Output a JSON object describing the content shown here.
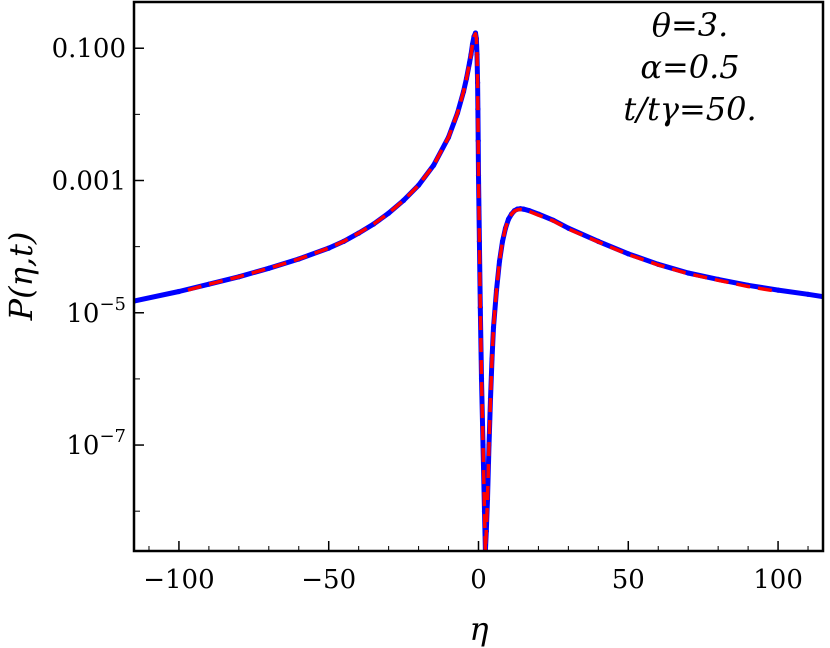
{
  "chart_data": {
    "type": "line",
    "title": "",
    "xlabel": "η",
    "ylabel": "P(η,t)",
    "xlim": [
      -115,
      115
    ],
    "ylim": [
      2.5e-09,
      0.5
    ],
    "yscale": "log",
    "grid": false,
    "x_ticks": [
      {
        "value": -100,
        "label": "−100"
      },
      {
        "value": -50,
        "label": "−50"
      },
      {
        "value": 0,
        "label": "0"
      },
      {
        "value": 50,
        "label": "50"
      },
      {
        "value": 100,
        "label": "100"
      }
    ],
    "y_ticks": [
      {
        "value": 0.1,
        "label": "0.100"
      },
      {
        "value": 0.001,
        "label": "0.001"
      },
      {
        "value": 1e-05,
        "base": "10",
        "exp": "−5"
      },
      {
        "value": 1e-07,
        "base": "10",
        "exp": "−7"
      }
    ],
    "annotations": [
      "θ=3.",
      "α=0.5",
      "t/tγ=50."
    ],
    "series": [
      {
        "style": "dotted",
        "color": "#0000ff",
        "x": [
          -115,
          -100,
          -90,
          -80,
          -70,
          -60,
          -50,
          -45,
          -40,
          -35,
          -30,
          -25,
          -20,
          -15,
          -10,
          -7,
          -5,
          -4,
          -3,
          -2.5,
          -2,
          -1.5,
          -1,
          -0.7,
          -0.5,
          -0.3,
          -0.2,
          -0.1,
          0,
          0.3,
          0.6,
          1,
          1.5,
          2,
          2.3,
          2.6,
          3,
          3.5,
          4,
          4.5,
          5,
          6,
          7,
          8,
          9,
          10,
          11,
          12,
          13,
          14,
          15,
          17,
          20,
          25,
          30,
          40,
          50,
          60,
          70,
          80,
          90,
          100,
          110,
          115
        ],
        "y": [
          1.5e-05,
          2.1e-05,
          2.7e-05,
          3.5e-05,
          4.7e-05,
          6.5e-05,
          9.5e-05,
          0.00012,
          0.00016,
          0.00022,
          0.00032,
          0.0005,
          0.00085,
          0.0017,
          0.0045,
          0.0105,
          0.022,
          0.035,
          0.06,
          0.08,
          0.115,
          0.15,
          0.17,
          0.14,
          0.08,
          0.03,
          0.012,
          0.004,
          0.0012,
          0.00012,
          1.2e-05,
          1e-06,
          1e-07,
          1e-08,
          2.5e-09,
          5e-09,
          1.5e-08,
          1e-07,
          5e-07,
          2e-06,
          6e-06,
          2.2e-05,
          6e-05,
          0.00012,
          0.00019,
          0.00026,
          0.00031,
          0.00035,
          0.00037,
          0.000375,
          0.00037,
          0.00035,
          0.00031,
          0.00025,
          0.00019,
          0.00012,
          7.8e-05,
          5.4e-05,
          4e-05,
          3.2e-05,
          2.6e-05,
          2.2e-05,
          1.9e-05,
          1.75e-05
        ]
      },
      {
        "style": "dashed",
        "color": "#ff0000",
        "x": [
          -97,
          -90,
          -80,
          -70,
          -60,
          -50,
          -45,
          -40,
          -35,
          -30,
          -25,
          -20,
          -15,
          -10,
          -7,
          -5,
          -4,
          -3,
          -2.5,
          -2,
          -1.5,
          -1,
          -0.7,
          -0.5,
          -0.3,
          -0.2,
          -0.1,
          0,
          0.3,
          0.6,
          1,
          1.5,
          2,
          2.3,
          2.6,
          3,
          3.5,
          4,
          4.5,
          5,
          6,
          7,
          8,
          9,
          10,
          11,
          12,
          13,
          14,
          15,
          17,
          20,
          25,
          30,
          40,
          50,
          60,
          70,
          80,
          90,
          100
        ],
        "y": [
          2.2e-05,
          2.7e-05,
          3.5e-05,
          4.7e-05,
          6.5e-05,
          9.5e-05,
          0.00012,
          0.00016,
          0.00022,
          0.00032,
          0.0005,
          0.00085,
          0.0017,
          0.0045,
          0.0105,
          0.022,
          0.035,
          0.06,
          0.08,
          0.115,
          0.15,
          0.165,
          0.14,
          0.08,
          0.03,
          0.012,
          0.004,
          0.0012,
          0.00012,
          1.2e-05,
          1e-06,
          1e-07,
          1e-08,
          2.5e-09,
          5e-09,
          1.5e-08,
          1e-07,
          5e-07,
          2e-06,
          6e-06,
          2.2e-05,
          6e-05,
          0.00012,
          0.00019,
          0.00026,
          0.00031,
          0.000345,
          0.00036,
          0.000365,
          0.00036,
          0.00034,
          0.0003,
          0.000245,
          0.000185,
          0.000118,
          7.6e-05,
          5.3e-05,
          3.9e-05,
          3.1e-05,
          2.5e-05,
          2.1e-05
        ]
      }
    ]
  }
}
